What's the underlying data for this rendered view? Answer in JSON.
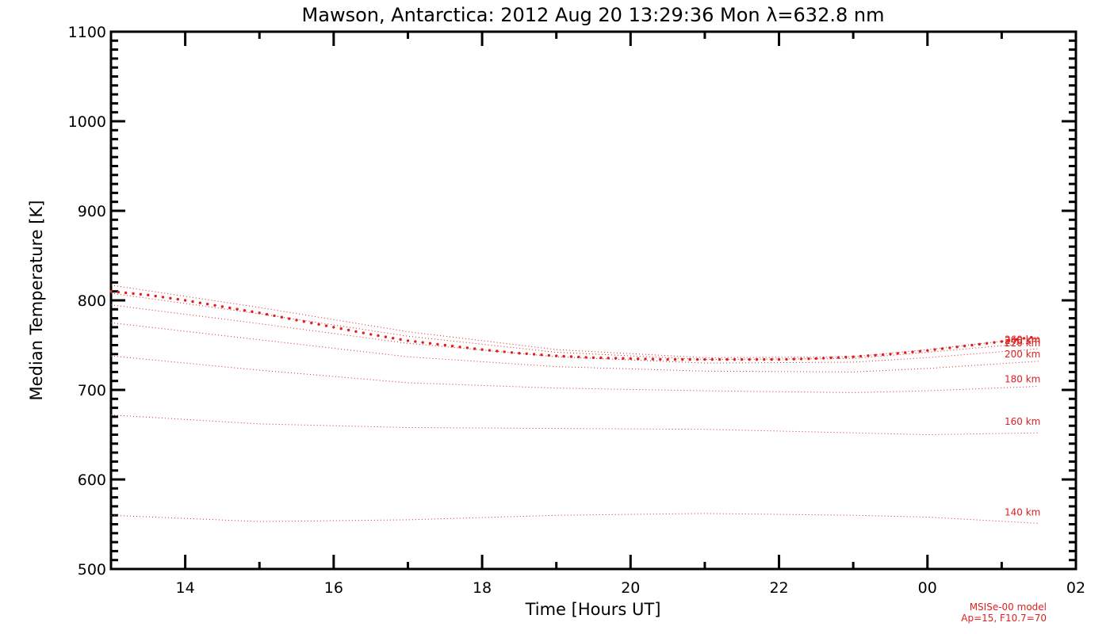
{
  "chart_data": {
    "type": "line",
    "title": "Mawson, Antarctica: 2012 Aug 20 13:29:36 Mon λ=632.8 nm",
    "xlabel": "Time [Hours UT]",
    "ylabel": "Median Temperature [K]",
    "xlim": [
      "2012-08-20 13:00",
      "2012-08-21 02:00"
    ],
    "ylim": [
      500,
      1100
    ],
    "x_ticks": [
      {
        "time": "2012-08-20 14:00",
        "label": "14"
      },
      {
        "time": "2012-08-20 16:00",
        "label": "16"
      },
      {
        "time": "2012-08-20 18:00",
        "label": "18"
      },
      {
        "time": "2012-08-20 20:00",
        "label": "20"
      },
      {
        "time": "2012-08-20 22:00",
        "label": "22"
      },
      {
        "time": "2012-08-21 00:00",
        "label": "00"
      },
      {
        "time": "2012-08-21 02:00",
        "label": "02"
      }
    ],
    "y_ticks": [
      500,
      600,
      700,
      800,
      900,
      1000,
      1100
    ],
    "grid": false,
    "measured": {
      "color": "#e02020",
      "points": [
        [
          "2012-08-20 13:00",
          810
        ],
        [
          "2012-08-20 13:30",
          806
        ],
        [
          "2012-08-20 14:00",
          800
        ],
        [
          "2012-08-20 14:30",
          793
        ],
        [
          "2012-08-20 15:00",
          786
        ],
        [
          "2012-08-20 15:30",
          778
        ],
        [
          "2012-08-20 16:00",
          770
        ],
        [
          "2012-08-20 16:30",
          762
        ],
        [
          "2012-08-20 17:00",
          755
        ],
        [
          "2012-08-20 17:30",
          750
        ],
        [
          "2012-08-20 18:00",
          745
        ],
        [
          "2012-08-20 18:30",
          741
        ],
        [
          "2012-08-20 19:00",
          738
        ],
        [
          "2012-08-20 19:30",
          736
        ],
        [
          "2012-08-20 20:00",
          735
        ],
        [
          "2012-08-20 20:30",
          734
        ],
        [
          "2012-08-20 21:00",
          734
        ],
        [
          "2012-08-20 21:30",
          734
        ],
        [
          "2012-08-20 22:00",
          734
        ],
        [
          "2012-08-20 22:30",
          735
        ],
        [
          "2012-08-20 23:00",
          737
        ],
        [
          "2012-08-20 23:30",
          740
        ],
        [
          "2012-08-21 00:00",
          744
        ],
        [
          "2012-08-21 00:30",
          749
        ],
        [
          "2012-08-21 01:00",
          754
        ],
        [
          "2012-08-21 01:25",
          759
        ]
      ]
    },
    "model_series": [
      {
        "label": "140 km",
        "color": "#e02020",
        "points": [
          [
            "2012-08-20 13:00",
            560
          ],
          [
            "2012-08-20 15:00",
            553
          ],
          [
            "2012-08-20 17:00",
            555
          ],
          [
            "2012-08-20 19:00",
            560
          ],
          [
            "2012-08-20 21:00",
            562
          ],
          [
            "2012-08-20 23:00",
            560
          ],
          [
            "2012-08-21 00:00",
            558
          ],
          [
            "2012-08-21 01:30",
            551
          ]
        ]
      },
      {
        "label": "160 km",
        "color": "#e02020",
        "points": [
          [
            "2012-08-20 13:00",
            672
          ],
          [
            "2012-08-20 15:00",
            662
          ],
          [
            "2012-08-20 17:00",
            658
          ],
          [
            "2012-08-20 19:00",
            657
          ],
          [
            "2012-08-20 21:00",
            656
          ],
          [
            "2012-08-20 23:00",
            652
          ],
          [
            "2012-08-21 00:00",
            650
          ],
          [
            "2012-08-21 01:30",
            652
          ]
        ]
      },
      {
        "label": "180 km",
        "color": "#e02020",
        "points": [
          [
            "2012-08-20 13:00",
            738
          ],
          [
            "2012-08-20 15:00",
            722
          ],
          [
            "2012-08-20 17:00",
            708
          ],
          [
            "2012-08-20 19:00",
            702
          ],
          [
            "2012-08-20 21:00",
            699
          ],
          [
            "2012-08-20 23:00",
            697
          ],
          [
            "2012-08-21 00:00",
            699
          ],
          [
            "2012-08-21 01:30",
            704
          ]
        ]
      },
      {
        "label": "200 km",
        "color": "#e02020",
        "points": [
          [
            "2012-08-20 13:00",
            775
          ],
          [
            "2012-08-20 15:00",
            756
          ],
          [
            "2012-08-20 17:00",
            737
          ],
          [
            "2012-08-20 19:00",
            726
          ],
          [
            "2012-08-20 21:00",
            721
          ],
          [
            "2012-08-20 23:00",
            720
          ],
          [
            "2012-08-21 00:00",
            724
          ],
          [
            "2012-08-21 01:30",
            732
          ]
        ]
      },
      {
        "label": "220 km",
        "color": "#e02020",
        "points": [
          [
            "2012-08-20 13:00",
            795
          ],
          [
            "2012-08-20 15:00",
            774
          ],
          [
            "2012-08-20 17:00",
            752
          ],
          [
            "2012-08-20 19:00",
            737
          ],
          [
            "2012-08-20 21:00",
            730
          ],
          [
            "2012-08-20 23:00",
            731
          ],
          [
            "2012-08-21 00:00",
            736
          ],
          [
            "2012-08-21 01:30",
            746
          ]
        ]
      },
      {
        "label": "240 km",
        "color": "#e02020",
        "points": [
          [
            "2012-08-20 13:00",
            808
          ],
          [
            "2012-08-20 15:00",
            785
          ],
          [
            "2012-08-20 17:00",
            760
          ],
          [
            "2012-08-20 19:00",
            742
          ],
          [
            "2012-08-20 21:00",
            734
          ],
          [
            "2012-08-20 23:00",
            735
          ],
          [
            "2012-08-21 00:00",
            742
          ],
          [
            "2012-08-21 01:30",
            753
          ]
        ]
      },
      {
        "label": "260 km",
        "color": "#e02020",
        "points": [
          [
            "2012-08-20 13:00",
            817
          ],
          [
            "2012-08-20 15:00",
            792
          ],
          [
            "2012-08-20 17:00",
            765
          ],
          [
            "2012-08-20 19:00",
            745
          ],
          [
            "2012-08-20 21:00",
            736
          ],
          [
            "2012-08-20 23:00",
            737
          ],
          [
            "2012-08-21 00:00",
            745
          ],
          [
            "2012-08-21 01:30",
            759
          ]
        ]
      }
    ],
    "annotations": [
      "MSISe-00 model",
      "Ap=15, F10.7=70"
    ]
  }
}
